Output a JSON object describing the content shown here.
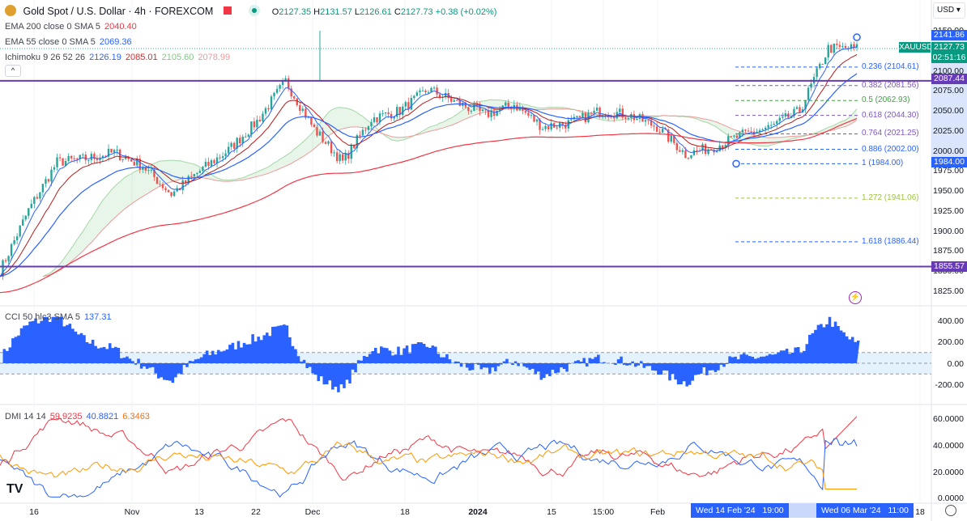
{
  "header": {
    "symbol_title": "Gold Spot / U.S. Dollar · 4h · FOREXCOM",
    "open_label": "O",
    "open": "2127.35",
    "high_label": "H",
    "high": "2131.57",
    "low_label": "L",
    "low": "2126.61",
    "close_label": "C",
    "close": "2127.73",
    "change": "+0.38 (+0.02%)",
    "currency": "USD"
  },
  "indicators": {
    "ema200": {
      "label": "EMA 200 close 0 SMA 5",
      "value": "2040.40"
    },
    "ema55": {
      "label": "EMA 55 close 0 SMA 5",
      "value": "2069.36"
    },
    "ichimoku": {
      "label": "Ichimoku 9 26 52 26",
      "v1": "2126.19",
      "v2": "2085.01",
      "v3": "2105.60",
      "v4": "2078.99"
    },
    "cci": {
      "label": "CCI 50 hlc3 SMA 5",
      "value": "137.31"
    },
    "dmi": {
      "label": "DMI 14 14",
      "plus": "59.9235",
      "minus": "40.8821",
      "adx": "6.3463"
    }
  },
  "price_axis": [
    "2150.00",
    "2100.00",
    "2075.00",
    "2050.00",
    "2025.00",
    "2000.00",
    "1975.00",
    "1950.00",
    "1925.00",
    "1900.00",
    "1875.00",
    "1850.00",
    "1825.00"
  ],
  "badges": {
    "high_marker": "2141.86",
    "symbol": "XAUUSD",
    "last": "2127.73",
    "countdown": "02:51:16",
    "resistance": "2087.44",
    "low_marker": "1984.00",
    "support": "1855.57"
  },
  "fib_levels": [
    {
      "label": "0.236 (2104.61)",
      "price": 2104.61,
      "color": "#2962ff"
    },
    {
      "label": "0.382 (2081.56)",
      "price": 2081.56,
      "color": "#7e57c2"
    },
    {
      "label": "0.5 (2062.93)",
      "price": 2062.93,
      "color": "#43a047"
    },
    {
      "label": "0.618 (2044.30)",
      "price": 2044.3,
      "color": "#7e57c2"
    },
    {
      "label": "0.764 (2021.25)",
      "price": 2021.25,
      "color": "#7e57c2"
    },
    {
      "label": "0.886 (2002.00)",
      "price": 2002.0,
      "color": "#2962ff"
    },
    {
      "label": "1 (1984.00)",
      "price": 1984.0,
      "color": "#2962ff"
    },
    {
      "label": "1.272 (1941.06)",
      "price": 1941.06,
      "color": "#9bc53d"
    },
    {
      "label": "1.618 (1886.44)",
      "price": 1886.44,
      "color": "#2962ff"
    }
  ],
  "horizontal_lines": [
    2087.44,
    1855.57
  ],
  "price_keypoints": [
    1850,
    1926,
    1986,
    1990,
    1998,
    1981,
    1946,
    1975,
    2001,
    2037,
    2087,
    2027,
    1986,
    2040,
    2050,
    2077,
    2060,
    2045,
    2058,
    2030,
    2035,
    2050,
    2045,
    2030,
    1996,
    2005,
    2020,
    2030,
    2050,
    2128,
    2128
  ],
  "cci_axis": [
    "400.00",
    "200.00",
    "0.00",
    "-200.00"
  ],
  "dmi_axis": [
    "60.0000",
    "40.0000",
    "20.0000",
    "0.0000"
  ],
  "time_axis": {
    "labels": [
      "16",
      "Nov",
      "13",
      "22",
      "Dec",
      "18",
      "2024",
      "15",
      "15:00",
      "Feb",
      "18"
    ],
    "range_start": "Wed 14 Feb '24",
    "range_start_time": "19:00",
    "range_end": "Wed 06 Mar '24",
    "range_end_time": "11:00"
  },
  "colors": {
    "up": "#26a69a",
    "down": "#ef5350",
    "purple": "#673ab7",
    "blue": "#2962ff",
    "ema200": "#f23645",
    "ema55": "#2962ff"
  }
}
